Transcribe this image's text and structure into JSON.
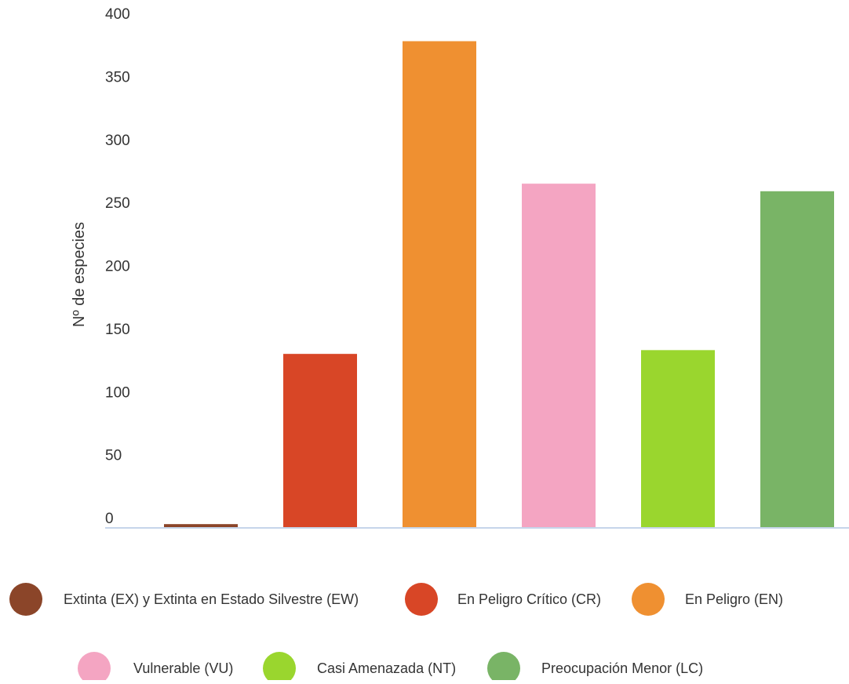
{
  "chart_data": {
    "type": "bar",
    "categories": [
      "Extinta (EX) y Extinta en Estado Silvestre (EW)",
      "En Peligro Crítico (CR)",
      "En Peligro (EN)",
      "Vulnerable (VU)",
      "Casi Amenazada (NT)",
      "Preocupación Menor (LC)"
    ],
    "values": [
      3,
      138,
      386,
      273,
      141,
      267
    ],
    "colors": [
      "#8b4529",
      "#d84626",
      "#ef9031",
      "#f4a5c2",
      "#9ad62e",
      "#79b466"
    ],
    "ylabel": "Nº de especies",
    "xlabel": "",
    "ylim": [
      0,
      400
    ],
    "yticks": [
      0,
      50,
      100,
      150,
      200,
      250,
      300,
      350,
      400
    ],
    "grid": false,
    "legend_placement": "bottom",
    "axis_color": "#c6d5ea"
  }
}
